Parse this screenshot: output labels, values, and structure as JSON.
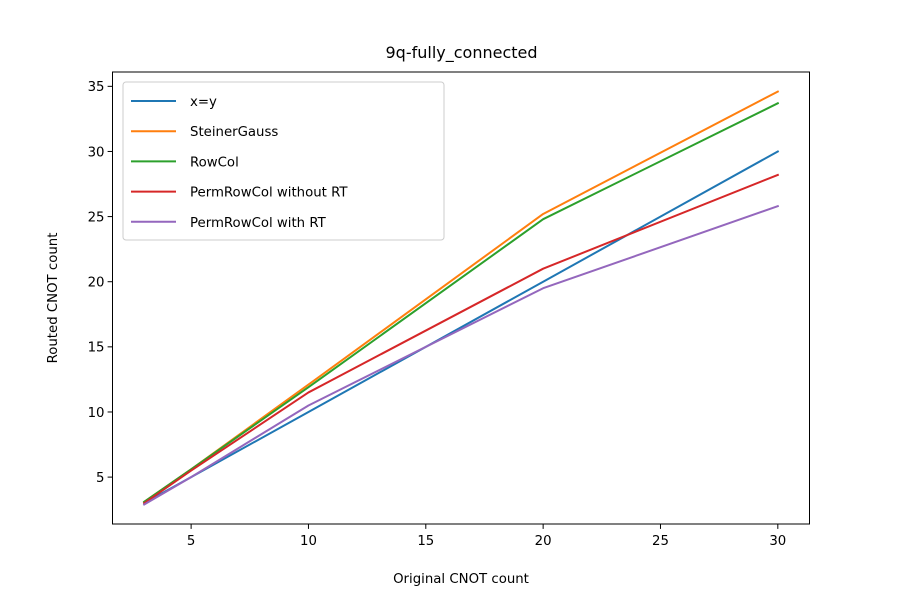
{
  "chart_data": {
    "type": "line",
    "title": "9q-fully_connected",
    "xlabel": "Original CNOT count",
    "ylabel": "Routed CNOT count",
    "x": [
      3,
      5,
      10,
      20,
      30
    ],
    "xlim": [
      1.65,
      31.35
    ],
    "ylim": [
      1.4,
      36.1
    ],
    "xticks": [
      5,
      10,
      15,
      20,
      25,
      30
    ],
    "yticks": [
      5,
      10,
      15,
      20,
      25,
      30,
      35
    ],
    "grid": false,
    "legend_position": "top-left",
    "series": [
      {
        "name": "x=y",
        "color": "#1f77b4",
        "values": [
          3,
          5,
          10,
          20,
          30
        ]
      },
      {
        "name": "SteinerGauss",
        "color": "#ff7f0e",
        "values": [
          3.1,
          5.6,
          12.1,
          25.2,
          34.6
        ]
      },
      {
        "name": "RowCol",
        "color": "#2ca02c",
        "values": [
          3.1,
          5.6,
          11.9,
          24.8,
          33.7
        ]
      },
      {
        "name": "PermRowCol without RT",
        "color": "#d62728",
        "values": [
          3.0,
          5.5,
          11.5,
          21.0,
          28.2
        ]
      },
      {
        "name": "PermRowCol with RT",
        "color": "#9467bd",
        "values": [
          2.9,
          5.0,
          10.5,
          19.5,
          25.8
        ]
      }
    ]
  }
}
